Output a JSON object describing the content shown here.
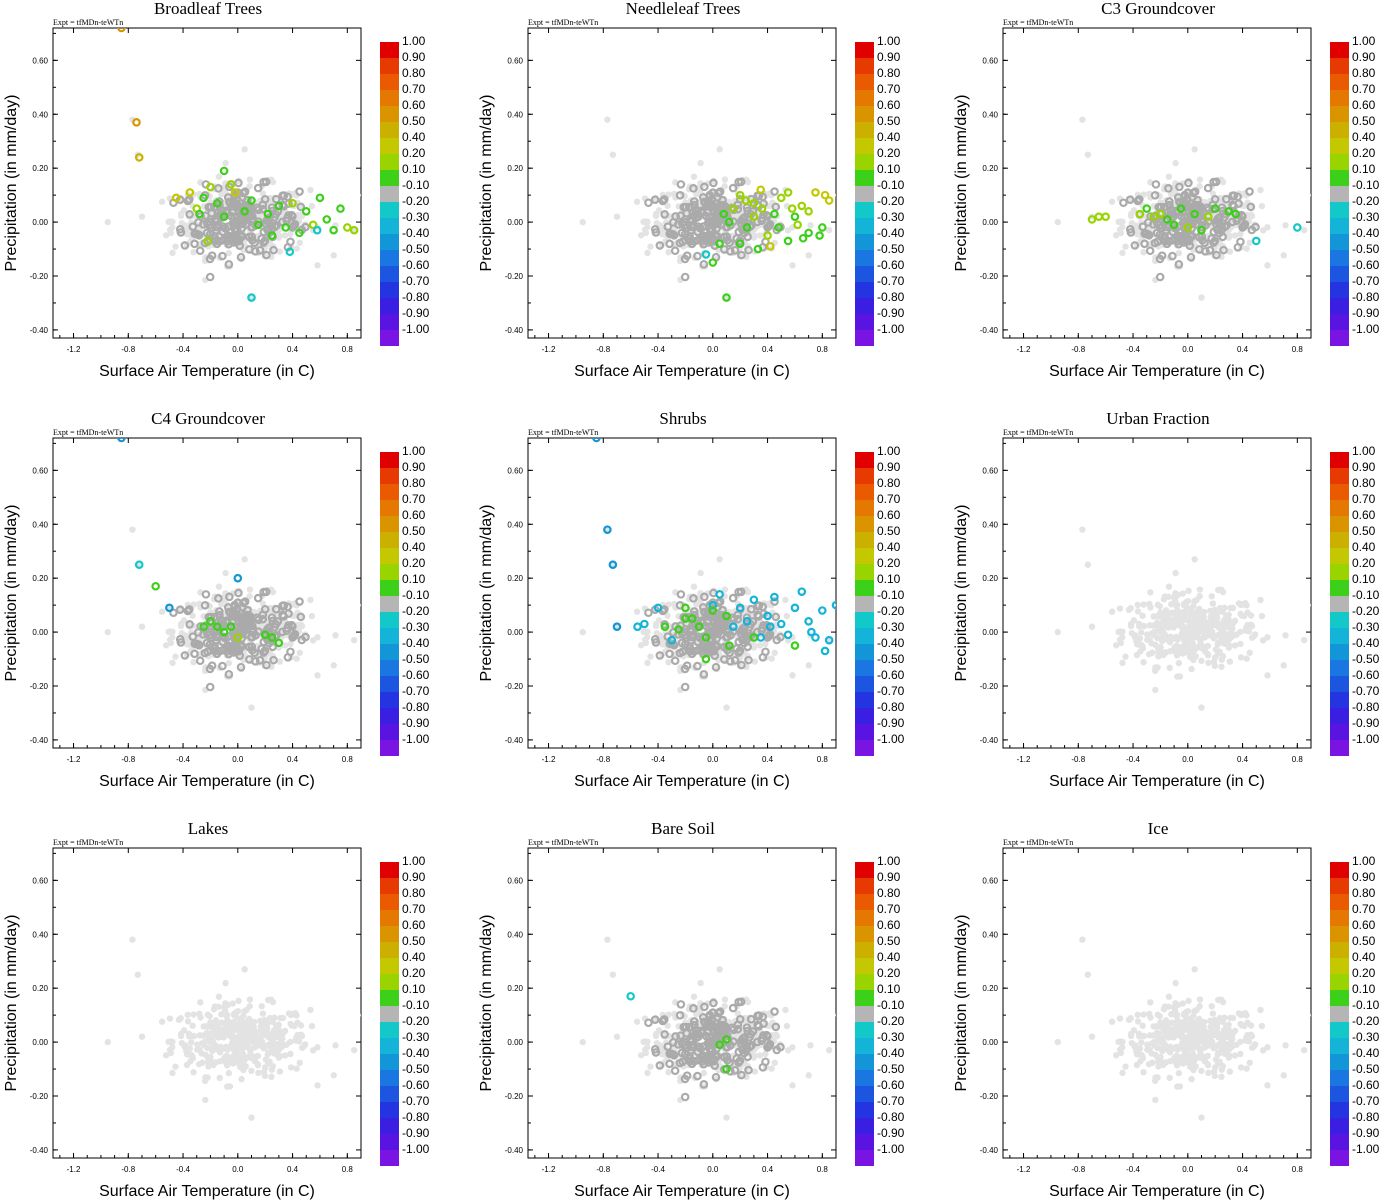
{
  "figure": {
    "expt_label": "Expt = tfMDn-teWTn",
    "xlabel": "Surface Air Temperature (in C)",
    "ylabel": "Precipitation (in mm/day)"
  },
  "colorbar": {
    "labels": [
      "1.00",
      "0.90",
      "0.80",
      "0.70",
      "0.60",
      "0.50",
      "0.40",
      "0.20",
      "0.10",
      "-0.10",
      "-0.20",
      "-0.30",
      "-0.40",
      "-0.50",
      "-0.60",
      "-0.70",
      "-0.80",
      "-0.90",
      "-1.00"
    ],
    "colors": [
      "#e00000",
      "#e63a00",
      "#ea5a00",
      "#e47800",
      "#d99400",
      "#ccb000",
      "#c3c800",
      "#9ad400",
      "#3dd01a",
      "#b5b5b5",
      "#13c8c8",
      "#13b4d8",
      "#1396d8",
      "#1a76e0",
      "#1c55e0",
      "#2434e0",
      "#3a1ee2",
      "#5a14e2",
      "#7a14e2"
    ]
  },
  "chart_data": [
    {
      "type": "scatter",
      "title": "Broadleaf Trees",
      "xlim": [
        -1.35,
        0.9
      ],
      "ylim": [
        -0.43,
        0.72
      ],
      "xticks": [
        "-1.2",
        "-0.8",
        "-0.4",
        "0.0",
        "0.4",
        "0.8"
      ],
      "yticks": [
        "-0.40",
        "-0.20",
        "0.00",
        "0.20",
        "0.40",
        "0.60"
      ],
      "colored_points": [
        [
          -0.85,
          0.72,
          4
        ],
        [
          -0.74,
          0.37,
          4
        ],
        [
          -0.72,
          0.24,
          5
        ],
        [
          -0.45,
          0.09,
          6
        ],
        [
          -0.35,
          0.11,
          6
        ],
        [
          -0.3,
          0.05,
          7
        ],
        [
          -0.25,
          0.09,
          8
        ],
        [
          -0.2,
          0.13,
          7
        ],
        [
          -0.15,
          0.07,
          8
        ],
        [
          -0.1,
          0.19,
          8
        ],
        [
          -0.05,
          0.14,
          7
        ],
        [
          -0.02,
          0.11,
          6
        ],
        [
          0.05,
          0.04,
          8
        ],
        [
          0.1,
          0.08,
          8
        ],
        [
          0.15,
          -0.01,
          8
        ],
        [
          0.22,
          0.03,
          8
        ],
        [
          0.3,
          0.06,
          8
        ],
        [
          0.35,
          -0.02,
          8
        ],
        [
          0.4,
          0.07,
          7
        ],
        [
          0.45,
          -0.04,
          8
        ],
        [
          0.5,
          0.04,
          8
        ],
        [
          0.55,
          -0.01,
          7
        ],
        [
          0.6,
          0.09,
          8
        ],
        [
          0.65,
          0.01,
          8
        ],
        [
          0.7,
          -0.03,
          8
        ],
        [
          0.75,
          0.05,
          8
        ],
        [
          0.8,
          -0.02,
          7
        ],
        [
          0.85,
          -0.03,
          7
        ],
        [
          -0.22,
          -0.07,
          7
        ],
        [
          0.1,
          -0.28,
          10
        ],
        [
          0.38,
          -0.11,
          10
        ],
        [
          0.58,
          -0.03,
          10
        ],
        [
          -0.1,
          0.02,
          8
        ],
        [
          0.25,
          -0.05,
          8
        ],
        [
          -0.28,
          0.03,
          8
        ]
      ],
      "neutral_count": 320,
      "neutral_color": "#aaaaaa"
    },
    {
      "type": "scatter",
      "title": "Needleleaf Trees",
      "xlim": [
        -1.35,
        0.9
      ],
      "ylim": [
        -0.43,
        0.72
      ],
      "xticks": [
        "-1.2",
        "-0.8",
        "-0.4",
        "0.0",
        "0.4",
        "0.8"
      ],
      "yticks": [
        "-0.40",
        "-0.20",
        "0.00",
        "0.20",
        "0.40",
        "0.60"
      ],
      "colored_points": [
        [
          0.0,
          -0.15,
          8
        ],
        [
          0.05,
          -0.08,
          8
        ],
        [
          0.1,
          -0.28,
          8
        ],
        [
          0.15,
          0.05,
          7
        ],
        [
          0.2,
          0.1,
          7
        ],
        [
          0.25,
          -0.02,
          8
        ],
        [
          0.3,
          0.07,
          7
        ],
        [
          0.35,
          0.12,
          6
        ],
        [
          0.4,
          -0.05,
          7
        ],
        [
          0.45,
          0.03,
          8
        ],
        [
          0.5,
          0.09,
          7
        ],
        [
          0.55,
          -0.07,
          8
        ],
        [
          0.6,
          0.02,
          8
        ],
        [
          0.65,
          0.06,
          7
        ],
        [
          0.7,
          -0.04,
          8
        ],
        [
          0.75,
          0.11,
          6
        ],
        [
          0.8,
          -0.02,
          8
        ],
        [
          0.85,
          0.08,
          6
        ],
        [
          0.2,
          -0.08,
          8
        ],
        [
          0.3,
          0.02,
          7
        ],
        [
          0.42,
          -0.09,
          6
        ],
        [
          0.55,
          0.11,
          7
        ],
        [
          0.62,
          -0.01,
          7
        ],
        [
          0.12,
          0.0,
          8
        ],
        [
          -0.05,
          -0.12,
          10
        ],
        [
          0.36,
          0.05,
          7
        ],
        [
          0.48,
          -0.02,
          8
        ],
        [
          0.7,
          0.04,
          7
        ],
        [
          0.78,
          -0.05,
          8
        ],
        [
          0.08,
          0.03,
          8
        ],
        [
          0.24,
          0.08,
          7
        ],
        [
          0.58,
          0.05,
          7
        ],
        [
          0.66,
          -0.06,
          8
        ],
        [
          0.33,
          -0.1,
          8
        ],
        [
          0.82,
          0.1,
          6
        ]
      ],
      "neutral_count": 320,
      "neutral_color": "#aaaaaa"
    },
    {
      "type": "scatter",
      "title": "C3 Groundcover",
      "xlim": [
        -1.35,
        0.9
      ],
      "ylim": [
        -0.43,
        0.72
      ],
      "xticks": [
        "-1.2",
        "-0.8",
        "-0.4",
        "0.0",
        "0.4",
        "0.8"
      ],
      "yticks": [
        "-0.40",
        "-0.20",
        "0.00",
        "0.20",
        "0.40",
        "0.60"
      ],
      "colored_points": [
        [
          -0.7,
          0.01,
          7
        ],
        [
          -0.65,
          0.02,
          7
        ],
        [
          -0.6,
          0.02,
          7
        ],
        [
          -0.35,
          0.03,
          7
        ],
        [
          -0.3,
          0.05,
          8
        ],
        [
          -0.25,
          0.02,
          7
        ],
        [
          -0.2,
          0.03,
          7
        ],
        [
          -0.15,
          0.01,
          8
        ],
        [
          -0.1,
          -0.01,
          8
        ],
        [
          -0.05,
          0.05,
          8
        ],
        [
          0.0,
          -0.02,
          7
        ],
        [
          0.05,
          0.03,
          8
        ],
        [
          0.1,
          -0.03,
          8
        ],
        [
          0.15,
          0.02,
          7
        ],
        [
          0.2,
          0.05,
          8
        ],
        [
          0.3,
          0.04,
          8
        ],
        [
          0.35,
          0.03,
          8
        ],
        [
          0.5,
          -0.07,
          10
        ],
        [
          0.8,
          -0.02,
          10
        ]
      ],
      "neutral_count": 320,
      "neutral_color": "#aaaaaa"
    },
    {
      "type": "scatter",
      "title": "C4 Groundcover",
      "xlim": [
        -1.35,
        0.9
      ],
      "ylim": [
        -0.43,
        0.72
      ],
      "xticks": [
        "-1.2",
        "-0.8",
        "-0.4",
        "0.0",
        "0.4",
        "0.8"
      ],
      "yticks": [
        "-0.40",
        "-0.20",
        "0.00",
        "0.20",
        "0.40",
        "0.60"
      ],
      "colored_points": [
        [
          -0.85,
          0.72,
          12
        ],
        [
          -0.72,
          0.25,
          10
        ],
        [
          -0.6,
          0.17,
          8
        ],
        [
          -0.5,
          0.09,
          12
        ],
        [
          -0.2,
          0.04,
          8
        ],
        [
          -0.15,
          0.02,
          8
        ],
        [
          -0.1,
          0.0,
          8
        ],
        [
          -0.05,
          0.02,
          8
        ],
        [
          0.0,
          -0.02,
          7
        ],
        [
          -0.25,
          0.02,
          8
        ],
        [
          0.0,
          0.2,
          12
        ],
        [
          0.2,
          -0.01,
          8
        ],
        [
          0.25,
          -0.02,
          8
        ],
        [
          0.3,
          -0.04,
          8
        ]
      ],
      "neutral_count": 320,
      "neutral_color": "#aaaaaa"
    },
    {
      "type": "scatter",
      "title": "Shrubs",
      "xlim": [
        -1.35,
        0.9
      ],
      "ylim": [
        -0.43,
        0.72
      ],
      "xticks": [
        "-1.2",
        "-0.8",
        "-0.4",
        "0.0",
        "0.4",
        "0.8"
      ],
      "yticks": [
        "-0.40",
        "-0.20",
        "0.00",
        "0.20",
        "0.40",
        "0.60"
      ],
      "colored_points": [
        [
          -0.85,
          0.72,
          12
        ],
        [
          -0.77,
          0.38,
          12
        ],
        [
          -0.73,
          0.25,
          12
        ],
        [
          -0.7,
          0.02,
          12
        ],
        [
          -0.55,
          0.02,
          11
        ],
        [
          -0.5,
          0.03,
          11
        ],
        [
          -0.4,
          0.09,
          11
        ],
        [
          -0.35,
          0.02,
          8
        ],
        [
          -0.3,
          -0.03,
          11
        ],
        [
          -0.25,
          0.01,
          8
        ],
        [
          -0.2,
          0.09,
          8
        ],
        [
          -0.15,
          0.05,
          8
        ],
        [
          -0.1,
          0.02,
          8
        ],
        [
          -0.05,
          -0.02,
          8
        ],
        [
          0.0,
          0.1,
          11
        ],
        [
          0.05,
          0.14,
          11
        ],
        [
          0.1,
          0.06,
          8
        ],
        [
          0.15,
          0.02,
          11
        ],
        [
          0.2,
          0.09,
          11
        ],
        [
          0.25,
          0.04,
          11
        ],
        [
          0.3,
          0.12,
          11
        ],
        [
          0.35,
          -0.02,
          11
        ],
        [
          0.4,
          0.06,
          11
        ],
        [
          0.45,
          0.13,
          11
        ],
        [
          0.5,
          0.03,
          11
        ],
        [
          0.55,
          -0.01,
          11
        ],
        [
          0.6,
          0.09,
          11
        ],
        [
          0.65,
          0.15,
          11
        ],
        [
          0.7,
          0.04,
          11
        ],
        [
          0.75,
          -0.02,
          11
        ],
        [
          0.8,
          0.08,
          11
        ],
        [
          0.85,
          -0.03,
          11
        ],
        [
          0.9,
          0.1,
          11
        ],
        [
          0.6,
          -0.05,
          8
        ],
        [
          -0.05,
          -0.1,
          8
        ],
        [
          0.12,
          -0.05,
          8
        ],
        [
          0.3,
          -0.02,
          8
        ],
        [
          0.0,
          0.08,
          8
        ],
        [
          -0.2,
          0.05,
          8
        ],
        [
          0.72,
          0.0,
          11
        ],
        [
          0.82,
          -0.07,
          11
        ],
        [
          0.42,
          0.02,
          11
        ]
      ],
      "neutral_count": 320,
      "neutral_color": "#aaaaaa"
    },
    {
      "type": "scatter",
      "title": "Urban Fraction",
      "xlim": [
        -1.35,
        0.9
      ],
      "ylim": [
        -0.43,
        0.72
      ],
      "xticks": [
        "-1.2",
        "-0.8",
        "-0.4",
        "0.0",
        "0.4",
        "0.8"
      ],
      "yticks": [
        "-0.40",
        "-0.20",
        "0.00",
        "0.20",
        "0.40",
        "0.60"
      ],
      "colored_points": [],
      "neutral_count": 320,
      "neutral_color": "#e2e2e2"
    },
    {
      "type": "scatter",
      "title": "Lakes",
      "xlim": [
        -1.35,
        0.9
      ],
      "ylim": [
        -0.43,
        0.72
      ],
      "xticks": [
        "-1.2",
        "-0.8",
        "-0.4",
        "0.0",
        "0.4",
        "0.8"
      ],
      "yticks": [
        "-0.40",
        "-0.20",
        "0.00",
        "0.20",
        "0.40",
        "0.60"
      ],
      "colored_points": [],
      "neutral_count": 320,
      "neutral_color": "#e2e2e2"
    },
    {
      "type": "scatter",
      "title": "Bare Soil",
      "xlim": [
        -1.35,
        0.9
      ],
      "ylim": [
        -0.43,
        0.72
      ],
      "xticks": [
        "-1.2",
        "-0.8",
        "-0.4",
        "0.0",
        "0.4",
        "0.8"
      ],
      "yticks": [
        "-0.40",
        "-0.20",
        "0.00",
        "0.20",
        "0.40",
        "0.60"
      ],
      "colored_points": [
        [
          -0.6,
          0.17,
          10
        ],
        [
          0.05,
          -0.01,
          8
        ],
        [
          0.1,
          0.01,
          8
        ],
        [
          0.1,
          -0.1,
          8
        ]
      ],
      "neutral_count": 320,
      "neutral_color": "#aaaaaa"
    },
    {
      "type": "scatter",
      "title": "Ice",
      "xlim": [
        -1.35,
        0.9
      ],
      "ylim": [
        -0.43,
        0.72
      ],
      "xticks": [
        "-1.2",
        "-0.8",
        "-0.4",
        "0.0",
        "0.4",
        "0.8"
      ],
      "yticks": [
        "-0.40",
        "-0.20",
        "0.00",
        "0.20",
        "0.40",
        "0.60"
      ],
      "colored_points": [],
      "neutral_count": 320,
      "neutral_color": "#e2e2e2"
    }
  ]
}
